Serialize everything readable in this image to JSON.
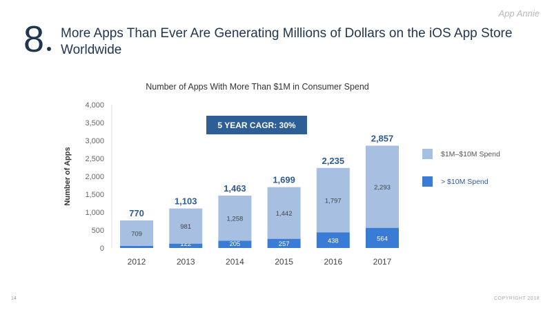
{
  "slide": {
    "number": "8",
    "title": "More Apps Than Ever Are Generating Millions of Dollars on the iOS App Store Worldwide",
    "brand": "App Annie",
    "watermark": "App Annie",
    "page_number": "14",
    "copyright": "COPYRIGHT 2018"
  },
  "chart_data": {
    "type": "bar",
    "stacked": true,
    "title": "Number of Apps With More Than $1M in Consumer Spend",
    "xlabel": "",
    "ylabel": "Number of Apps",
    "ylim": [
      0,
      4000
    ],
    "yticks": [
      "0",
      "500",
      "1,000",
      "1,500",
      "2,000",
      "2,500",
      "3,000",
      "3,500",
      "4,000"
    ],
    "categories": [
      "2012",
      "2013",
      "2014",
      "2015",
      "2016",
      "2017"
    ],
    "series": [
      {
        "name": "> $10M Spend",
        "values": [
          61,
          122,
          205,
          257,
          438,
          564
        ],
        "color": "#3a7bd5"
      },
      {
        "name": "$1M–$10M Spend",
        "values": [
          709,
          981,
          1258,
          1442,
          1797,
          2293
        ],
        "color": "#a7bfe0"
      }
    ],
    "totals": [
      "770",
      "1,103",
      "1,463",
      "1,699",
      "2,235",
      "2,857"
    ],
    "annotation": "5 YEAR CAGR: 30%",
    "legend_position": "right",
    "grid": false
  }
}
